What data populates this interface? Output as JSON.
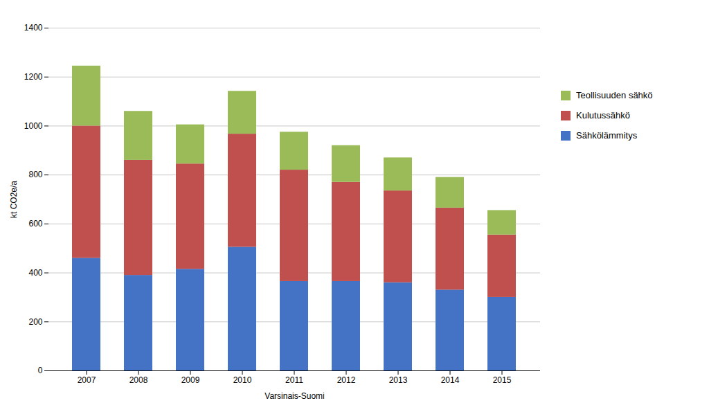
{
  "chart_data": {
    "type": "bar",
    "stacked": true,
    "categories": [
      "2007",
      "2008",
      "2009",
      "2010",
      "2011",
      "2012",
      "2013",
      "2014",
      "2015"
    ],
    "series": [
      {
        "name": "Sähkölämmitys",
        "color": "#4472C4",
        "values": [
          460,
          390,
          415,
          505,
          365,
          365,
          360,
          330,
          300
        ]
      },
      {
        "name": "Kulutussähkö",
        "color": "#C0504D",
        "values": [
          540,
          470,
          430,
          462,
          455,
          405,
          375,
          335,
          255
        ]
      },
      {
        "name": "Teollisuuden sähkö",
        "color": "#9BBB59",
        "values": [
          245,
          200,
          160,
          175,
          155,
          150,
          135,
          125,
          100
        ]
      }
    ],
    "xlabel": "Varsinais-Suomi",
    "ylabel": "kt CO2e/a",
    "ylim": [
      0,
      1400
    ],
    "yticks": [
      0,
      200,
      400,
      600,
      800,
      1000,
      1200,
      1400
    ],
    "grid": true,
    "legend": "right"
  }
}
